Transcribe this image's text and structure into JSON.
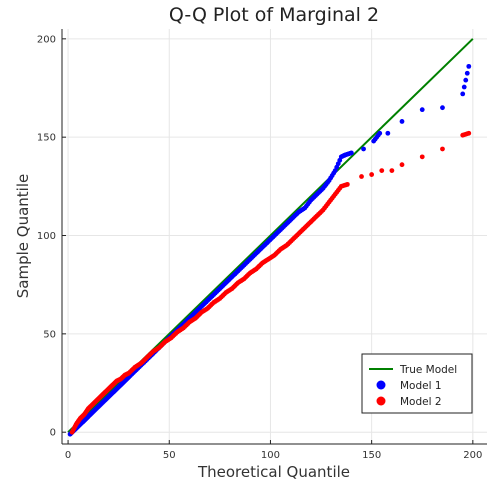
{
  "chart_data": {
    "type": "scatter",
    "title": "Q-Q Plot of Marginal 2",
    "xlabel": "Theoretical Quantile",
    "ylabel": "Sample Quantile",
    "xlim": [
      -3,
      207
    ],
    "ylim": [
      -6,
      205
    ],
    "xticks": [
      0,
      50,
      100,
      150,
      200
    ],
    "yticks": [
      0,
      50,
      100,
      150,
      200
    ],
    "grid": true,
    "legend_position": "bottom-right",
    "reference_line": {
      "name": "True Model",
      "color": "#008000",
      "points": [
        [
          0,
          0
        ],
        [
          200,
          200
        ]
      ]
    },
    "series": [
      {
        "name": "Model 1",
        "color": "#0000ff",
        "points": [
          [
            1,
            -1
          ],
          [
            2,
            0
          ],
          [
            3,
            1
          ],
          [
            4,
            2
          ],
          [
            5,
            3
          ],
          [
            6,
            4
          ],
          [
            7,
            5
          ],
          [
            8,
            6
          ],
          [
            9,
            7
          ],
          [
            10,
            8
          ],
          [
            12,
            10
          ],
          [
            14,
            12
          ],
          [
            16,
            14
          ],
          [
            18,
            16
          ],
          [
            20,
            18
          ],
          [
            22,
            20
          ],
          [
            24,
            22
          ],
          [
            26,
            24
          ],
          [
            28,
            26
          ],
          [
            30,
            28
          ],
          [
            33,
            31
          ],
          [
            36,
            34
          ],
          [
            39,
            37
          ],
          [
            42,
            40
          ],
          [
            45,
            43
          ],
          [
            48,
            46
          ],
          [
            51,
            49
          ],
          [
            54,
            52
          ],
          [
            57,
            55
          ],
          [
            60,
            58
          ],
          [
            63,
            61
          ],
          [
            66,
            64
          ],
          [
            69,
            67
          ],
          [
            72,
            70
          ],
          [
            75,
            73
          ],
          [
            78,
            76
          ],
          [
            81,
            79
          ],
          [
            84,
            82
          ],
          [
            87,
            85
          ],
          [
            90,
            88
          ],
          [
            93,
            91
          ],
          [
            96,
            94
          ],
          [
            99,
            97
          ],
          [
            102,
            100
          ],
          [
            105,
            103
          ],
          [
            108,
            106
          ],
          [
            111,
            109
          ],
          [
            114,
            112
          ],
          [
            117,
            114
          ],
          [
            120,
            118
          ],
          [
            123,
            121
          ],
          [
            126,
            124
          ],
          [
            129,
            128
          ],
          [
            132,
            133
          ],
          [
            135,
            140
          ],
          [
            137,
            141
          ],
          [
            140,
            142
          ],
          [
            146,
            144
          ],
          [
            151,
            148
          ],
          [
            154,
            152
          ],
          [
            158,
            152
          ],
          [
            165,
            158
          ],
          [
            175,
            164
          ],
          [
            185,
            165
          ],
          [
            195,
            172
          ],
          [
            198,
            186
          ]
        ]
      },
      {
        "name": "Model 2",
        "color": "#ff0000",
        "points": [
          [
            2,
            0
          ],
          [
            4,
            4
          ],
          [
            6,
            7
          ],
          [
            8,
            9
          ],
          [
            10,
            12
          ],
          [
            12,
            14
          ],
          [
            14,
            16
          ],
          [
            16,
            18
          ],
          [
            18,
            20
          ],
          [
            20,
            22
          ],
          [
            22,
            24
          ],
          [
            24,
            26
          ],
          [
            26,
            27
          ],
          [
            28,
            29
          ],
          [
            30,
            30
          ],
          [
            33,
            33
          ],
          [
            36,
            35
          ],
          [
            39,
            38
          ],
          [
            42,
            41
          ],
          [
            45,
            43
          ],
          [
            48,
            46
          ],
          [
            51,
            48
          ],
          [
            54,
            51
          ],
          [
            57,
            53
          ],
          [
            60,
            56
          ],
          [
            63,
            58
          ],
          [
            66,
            61
          ],
          [
            69,
            63
          ],
          [
            72,
            66
          ],
          [
            75,
            68
          ],
          [
            78,
            71
          ],
          [
            81,
            73
          ],
          [
            84,
            76
          ],
          [
            87,
            78
          ],
          [
            90,
            81
          ],
          [
            93,
            83
          ],
          [
            96,
            86
          ],
          [
            99,
            88
          ],
          [
            102,
            90
          ],
          [
            105,
            93
          ],
          [
            108,
            95
          ],
          [
            111,
            98
          ],
          [
            114,
            101
          ],
          [
            117,
            104
          ],
          [
            120,
            107
          ],
          [
            123,
            110
          ],
          [
            126,
            113
          ],
          [
            129,
            117
          ],
          [
            132,
            121
          ],
          [
            135,
            125
          ],
          [
            138,
            126
          ],
          [
            145,
            130
          ],
          [
            150,
            131
          ],
          [
            155,
            133
          ],
          [
            160,
            133
          ],
          [
            165,
            136
          ],
          [
            175,
            140
          ],
          [
            185,
            144
          ],
          [
            195,
            151
          ],
          [
            198,
            152
          ]
        ]
      }
    ]
  }
}
